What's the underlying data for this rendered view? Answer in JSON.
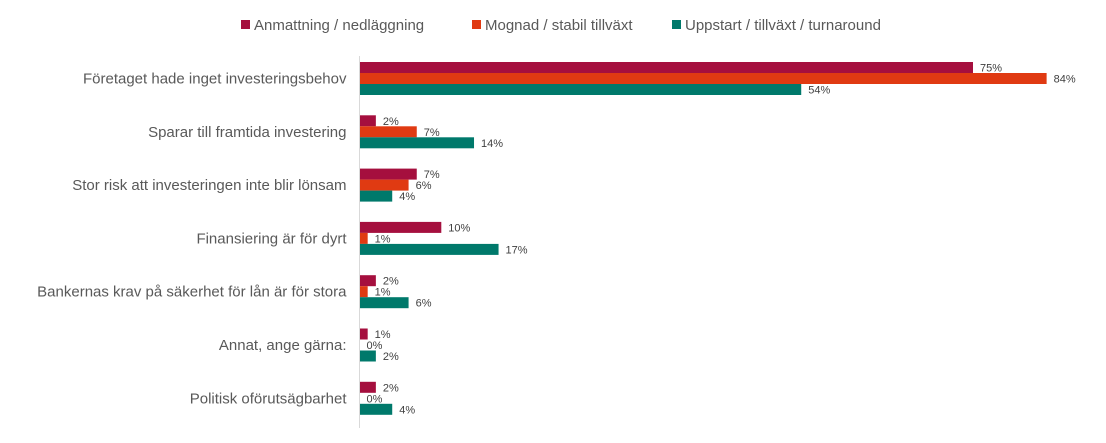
{
  "chart_data": {
    "type": "bar",
    "orientation": "horizontal",
    "categories": [
      "Företaget hade inget investeringsbehov",
      "Sparar till framtida investering",
      "Stor risk att investeringen inte blir lönsam",
      "Finansiering är för dyrt",
      "Bankernas krav på säkerhet för lån är för stora",
      "Annat, ange gärna:",
      "Politisk oförutsägbarhet"
    ],
    "series": [
      {
        "name": "Anmattning / nedläggning",
        "color": "#A50F3E",
        "values": [
          75,
          2,
          7,
          10,
          2,
          1,
          2
        ],
        "labels": [
          "75%",
          "2%",
          "7%",
          "10%",
          "2%",
          "1%",
          "2%"
        ]
      },
      {
        "name": "Mognad / stabil tillväxt",
        "color": "#E03A12",
        "values": [
          84,
          7,
          6,
          1,
          1,
          0,
          0
        ],
        "labels": [
          "84%",
          "7%",
          "6%",
          "1%",
          "1%",
          "0%",
          "0%"
        ]
      },
      {
        "name": "Uppstart / tillväxt / turnaround",
        "color": "#00796B",
        "values": [
          54,
          14,
          4,
          17,
          6,
          2,
          4
        ],
        "labels": [
          "54%",
          "14%",
          "4%",
          "17%",
          "6%",
          "2%",
          "4%"
        ]
      }
    ],
    "xlim": [
      0,
      100
    ],
    "legend_position": "top",
    "grid": false
  }
}
